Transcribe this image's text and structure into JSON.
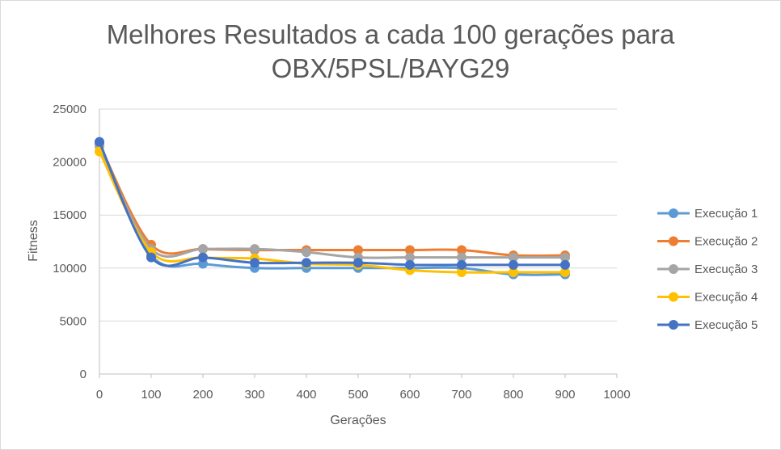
{
  "chart_data": {
    "type": "line",
    "title_line1": "Melhores Resultados a cada 100 gerações para",
    "title_line2": "OBX/5PSL/BAYG29",
    "xlabel": "Gerações",
    "ylabel": "Fitness",
    "xlim": [
      0,
      1000
    ],
    "ylim": [
      0,
      25000
    ],
    "xticks": [
      0,
      100,
      200,
      300,
      400,
      500,
      600,
      700,
      800,
      900,
      1000
    ],
    "yticks": [
      0,
      5000,
      10000,
      15000,
      20000,
      25000
    ],
    "grid": "horizontal",
    "legend": "right",
    "x": [
      0,
      100,
      200,
      300,
      400,
      500,
      600,
      700,
      800,
      900
    ],
    "series": [
      {
        "name": "Execução 1",
        "color": "#5b9bd5",
        "values": [
          21800,
          11200,
          10400,
          10000,
          10000,
          10000,
          10000,
          10000,
          9400,
          9400
        ]
      },
      {
        "name": "Execução 2",
        "color": "#ed7d31",
        "values": [
          21700,
          12200,
          11800,
          11700,
          11700,
          11700,
          11700,
          11700,
          11200,
          11200
        ]
      },
      {
        "name": "Execução 3",
        "color": "#a5a5a5",
        "values": [
          21500,
          11800,
          11800,
          11800,
          11500,
          11000,
          11000,
          11000,
          11000,
          11000
        ]
      },
      {
        "name": "Execução 4",
        "color": "#ffc000",
        "values": [
          21000,
          11500,
          11000,
          10900,
          10400,
          10300,
          9800,
          9600,
          9600,
          9600
        ]
      },
      {
        "name": "Execução 5",
        "color": "#4472c4",
        "values": [
          21900,
          11000,
          11000,
          10500,
          10500,
          10500,
          10300,
          10300,
          10300,
          10300
        ]
      }
    ]
  }
}
